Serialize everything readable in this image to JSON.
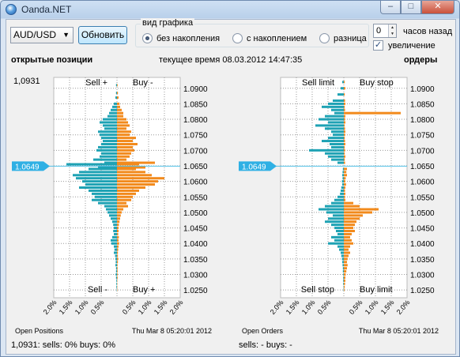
{
  "window": {
    "title": "Oanda.NET",
    "buttons": {
      "minimize": "–",
      "maximize": "□",
      "close": "✕"
    }
  },
  "toolbar": {
    "pair": "AUD/USD",
    "refresh_label": "Обновить",
    "mode_group": {
      "label": "вид графика",
      "options": [
        "без накопления",
        "с накоплением",
        "разница"
      ],
      "selected": "без накопления"
    },
    "hours_value": "0",
    "hours_label": "часов назад",
    "zoom_label": "увеличение"
  },
  "header": {
    "positions_title": "открытые позиции",
    "time_text": "текущее время 08.03.2012 14:47:35",
    "orders_title": "ордеры"
  },
  "colors": {
    "teal": "#1ea2b4",
    "orange": "#f28a1c",
    "price_line": "#4fc0e6",
    "bg": "#f0f0f0",
    "grid": "#9a9a9a"
  },
  "chart_data": [
    {
      "type": "bar",
      "name_text": "Open Positions",
      "current_price_label": "1.0649",
      "top_price_label": "1,0931",
      "quadrant_labels": [
        "Sell +",
        "Buy -",
        "Sell -",
        "Buy +"
      ],
      "xticks": [
        "2.0%",
        "1.5%",
        "1.0%",
        "0.5%",
        "0.5%",
        "1.0%",
        "1.5%",
        "2.0%"
      ],
      "yticks": [
        "1.0900",
        "1.0850",
        "1.0800",
        "1.0750",
        "1.0700",
        "1.0650",
        "1.0600",
        "1.0550",
        "1.0500",
        "1.0450",
        "1.0400",
        "1.0350",
        "1.0300",
        "1.0250"
      ],
      "ylim": [
        1.0225,
        1.0935
      ],
      "xlim": [
        -2.0,
        2.0
      ],
      "date_text": "Thu Mar  8 05:20:01 2012",
      "current_price": 1.0649,
      "bins": [
        [
          1.091,
          -0.03,
          0.02
        ],
        [
          1.0885,
          -0.03,
          0.03
        ],
        [
          1.087,
          -0.05,
          0.05
        ],
        [
          1.085,
          -0.1,
          0.08
        ],
        [
          1.084,
          -0.15,
          0.1
        ],
        [
          1.083,
          -0.2,
          0.15
        ],
        [
          1.082,
          -0.25,
          0.2
        ],
        [
          1.081,
          -0.3,
          0.2
        ],
        [
          1.08,
          -0.45,
          0.3
        ],
        [
          1.079,
          -0.55,
          0.35
        ],
        [
          1.078,
          -0.45,
          0.4
        ],
        [
          1.077,
          -0.4,
          0.3
        ],
        [
          1.076,
          -0.6,
          0.45
        ],
        [
          1.075,
          -0.55,
          0.4
        ],
        [
          1.074,
          -0.5,
          0.6
        ],
        [
          1.073,
          -0.45,
          0.5
        ],
        [
          1.072,
          -0.5,
          0.65
        ],
        [
          1.071,
          -0.6,
          0.5
        ],
        [
          1.07,
          -0.65,
          0.55
        ],
        [
          1.069,
          -0.5,
          0.45
        ],
        [
          1.068,
          -0.55,
          0.4
        ],
        [
          1.067,
          -0.75,
          0.3
        ],
        [
          1.066,
          -0.4,
          1.2
        ],
        [
          1.0655,
          -1.6,
          0.7
        ],
        [
          1.0645,
          -0.6,
          0.9
        ],
        [
          1.064,
          -0.9,
          0.6
        ],
        [
          1.063,
          -1.2,
          0.9
        ],
        [
          1.062,
          -1.4,
          1.1
        ],
        [
          1.061,
          -1.3,
          1.5
        ],
        [
          1.06,
          -1.1,
          1.3
        ],
        [
          1.059,
          -1.0,
          1.2
        ],
        [
          1.058,
          -1.2,
          0.9
        ],
        [
          1.057,
          -0.9,
          0.7
        ],
        [
          1.056,
          -0.8,
          0.6
        ],
        [
          1.055,
          -0.7,
          0.5
        ],
        [
          1.054,
          -0.8,
          0.45
        ],
        [
          1.053,
          -0.6,
          0.3
        ],
        [
          1.052,
          -0.4,
          0.35
        ],
        [
          1.051,
          -0.35,
          0.2
        ],
        [
          1.05,
          -0.3,
          0.15
        ],
        [
          1.049,
          -0.25,
          0.12
        ],
        [
          1.048,
          -0.2,
          0.1
        ],
        [
          1.047,
          -0.15,
          0.08
        ],
        [
          1.046,
          -0.12,
          0.06
        ],
        [
          1.045,
          -0.1,
          0.05
        ],
        [
          1.044,
          -0.12,
          0.05
        ],
        [
          1.043,
          -0.1,
          0.04
        ],
        [
          1.042,
          -0.15,
          0.06
        ],
        [
          1.041,
          -0.2,
          0.05
        ],
        [
          1.04,
          -0.18,
          0.07
        ],
        [
          1.039,
          -0.1,
          0.05
        ],
        [
          1.038,
          -0.08,
          0.04
        ],
        [
          1.037,
          -0.1,
          0.03
        ],
        [
          1.036,
          -0.06,
          0.03
        ],
        [
          1.035,
          -0.05,
          0.04
        ],
        [
          1.034,
          -0.04,
          0.03
        ],
        [
          1.033,
          -0.05,
          0.02
        ],
        [
          1.032,
          -0.03,
          0.02
        ],
        [
          1.031,
          -0.03,
          0.02
        ],
        [
          1.03,
          -0.04,
          0.02
        ],
        [
          1.029,
          -0.03,
          0.02
        ],
        [
          1.028,
          -0.02,
          0.01
        ],
        [
          1.027,
          -0.02,
          0.01
        ],
        [
          1.026,
          -0.02,
          0.01
        ],
        [
          1.025,
          -0.01,
          0.01
        ]
      ]
    },
    {
      "type": "bar",
      "name_text": "Open Orders",
      "current_price_label": "1.0649",
      "quadrant_labels": [
        "Sell limit",
        "Buy stop",
        "Sell stop",
        "Buy limit"
      ],
      "xticks": [
        "2.0%",
        "1.5%",
        "1.0%",
        "0.5%",
        "0.5%",
        "1.0%",
        "1.5%",
        "2.0%"
      ],
      "yticks": [
        "1.0900",
        "1.0850",
        "1.0800",
        "1.0750",
        "1.0700",
        "1.0650",
        "1.0600",
        "1.0550",
        "1.0500",
        "1.0450",
        "1.0400",
        "1.0350",
        "1.0300",
        "1.0250"
      ],
      "ylim": [
        1.0225,
        1.0935
      ],
      "xlim": [
        -2.0,
        2.0
      ],
      "date_text": "Thu Mar  8 05:20:01 2012",
      "current_price": 1.0649,
      "bins": [
        [
          1.092,
          -0.05,
          0.03
        ],
        [
          1.09,
          -0.1,
          0.05
        ],
        [
          1.088,
          -0.2,
          0.03
        ],
        [
          1.086,
          -0.35,
          0.04
        ],
        [
          1.085,
          -0.5,
          0.05
        ],
        [
          1.084,
          -0.7,
          0.03
        ],
        [
          1.083,
          -0.4,
          0.04
        ],
        [
          1.082,
          -0.3,
          1.8
        ],
        [
          1.081,
          -0.6,
          0.05
        ],
        [
          1.08,
          -0.8,
          0.04
        ],
        [
          1.079,
          -0.5,
          0.05
        ],
        [
          1.078,
          -0.9,
          0.03
        ],
        [
          1.077,
          -0.6,
          0.04
        ],
        [
          1.076,
          -0.4,
          0.05
        ],
        [
          1.075,
          -0.35,
          0.04
        ],
        [
          1.074,
          -0.5,
          0.03
        ],
        [
          1.073,
          -0.7,
          0.04
        ],
        [
          1.072,
          -0.45,
          0.05
        ],
        [
          1.071,
          -0.4,
          0.03
        ],
        [
          1.07,
          -1.1,
          0.04
        ],
        [
          1.069,
          -0.6,
          0.03
        ],
        [
          1.068,
          -0.5,
          0.05
        ],
        [
          1.067,
          -0.4,
          0.03
        ],
        [
          1.066,
          -0.2,
          0.04
        ],
        [
          1.064,
          -0.03,
          0.1
        ],
        [
          1.063,
          -0.04,
          0.08
        ],
        [
          1.062,
          -0.05,
          0.1
        ],
        [
          1.061,
          -0.04,
          0.06
        ],
        [
          1.06,
          -0.06,
          0.05
        ],
        [
          1.059,
          -0.05,
          0.07
        ],
        [
          1.058,
          -0.08,
          0.05
        ],
        [
          1.057,
          -0.1,
          0.04
        ],
        [
          1.056,
          -0.12,
          0.05
        ],
        [
          1.055,
          -0.2,
          0.04
        ],
        [
          1.054,
          -0.3,
          0.05
        ],
        [
          1.053,
          -0.4,
          0.3
        ],
        [
          1.052,
          -0.6,
          0.5
        ],
        [
          1.051,
          -0.8,
          1.1
        ],
        [
          1.05,
          -0.55,
          0.9
        ],
        [
          1.049,
          -0.35,
          0.6
        ],
        [
          1.048,
          -0.5,
          0.5
        ],
        [
          1.047,
          -0.6,
          0.4
        ],
        [
          1.046,
          -0.4,
          0.35
        ],
        [
          1.045,
          -0.3,
          0.3
        ],
        [
          1.044,
          -0.25,
          0.35
        ],
        [
          1.043,
          -0.2,
          0.25
        ],
        [
          1.042,
          -0.4,
          0.2
        ],
        [
          1.041,
          -0.3,
          0.25
        ],
        [
          1.04,
          -0.5,
          0.3
        ],
        [
          1.039,
          -0.2,
          0.2
        ],
        [
          1.038,
          -0.15,
          0.15
        ],
        [
          1.037,
          -0.1,
          0.2
        ],
        [
          1.036,
          -0.08,
          0.15
        ],
        [
          1.035,
          -0.06,
          0.12
        ],
        [
          1.034,
          -0.05,
          0.1
        ],
        [
          1.033,
          -0.04,
          0.12
        ],
        [
          1.032,
          -0.03,
          0.1
        ],
        [
          1.031,
          -0.03,
          0.08
        ],
        [
          1.03,
          -0.02,
          0.06
        ],
        [
          1.029,
          -0.02,
          0.05
        ],
        [
          1.028,
          -0.02,
          0.05
        ],
        [
          1.027,
          -0.02,
          0.04
        ],
        [
          1.026,
          -0.01,
          0.03
        ],
        [
          1.025,
          -0.01,
          0.02
        ]
      ]
    }
  ],
  "footer": {
    "positions_status": "1,0931:  sells: 0%  buys: 0%",
    "orders_status": "sells: -  buys: -"
  }
}
